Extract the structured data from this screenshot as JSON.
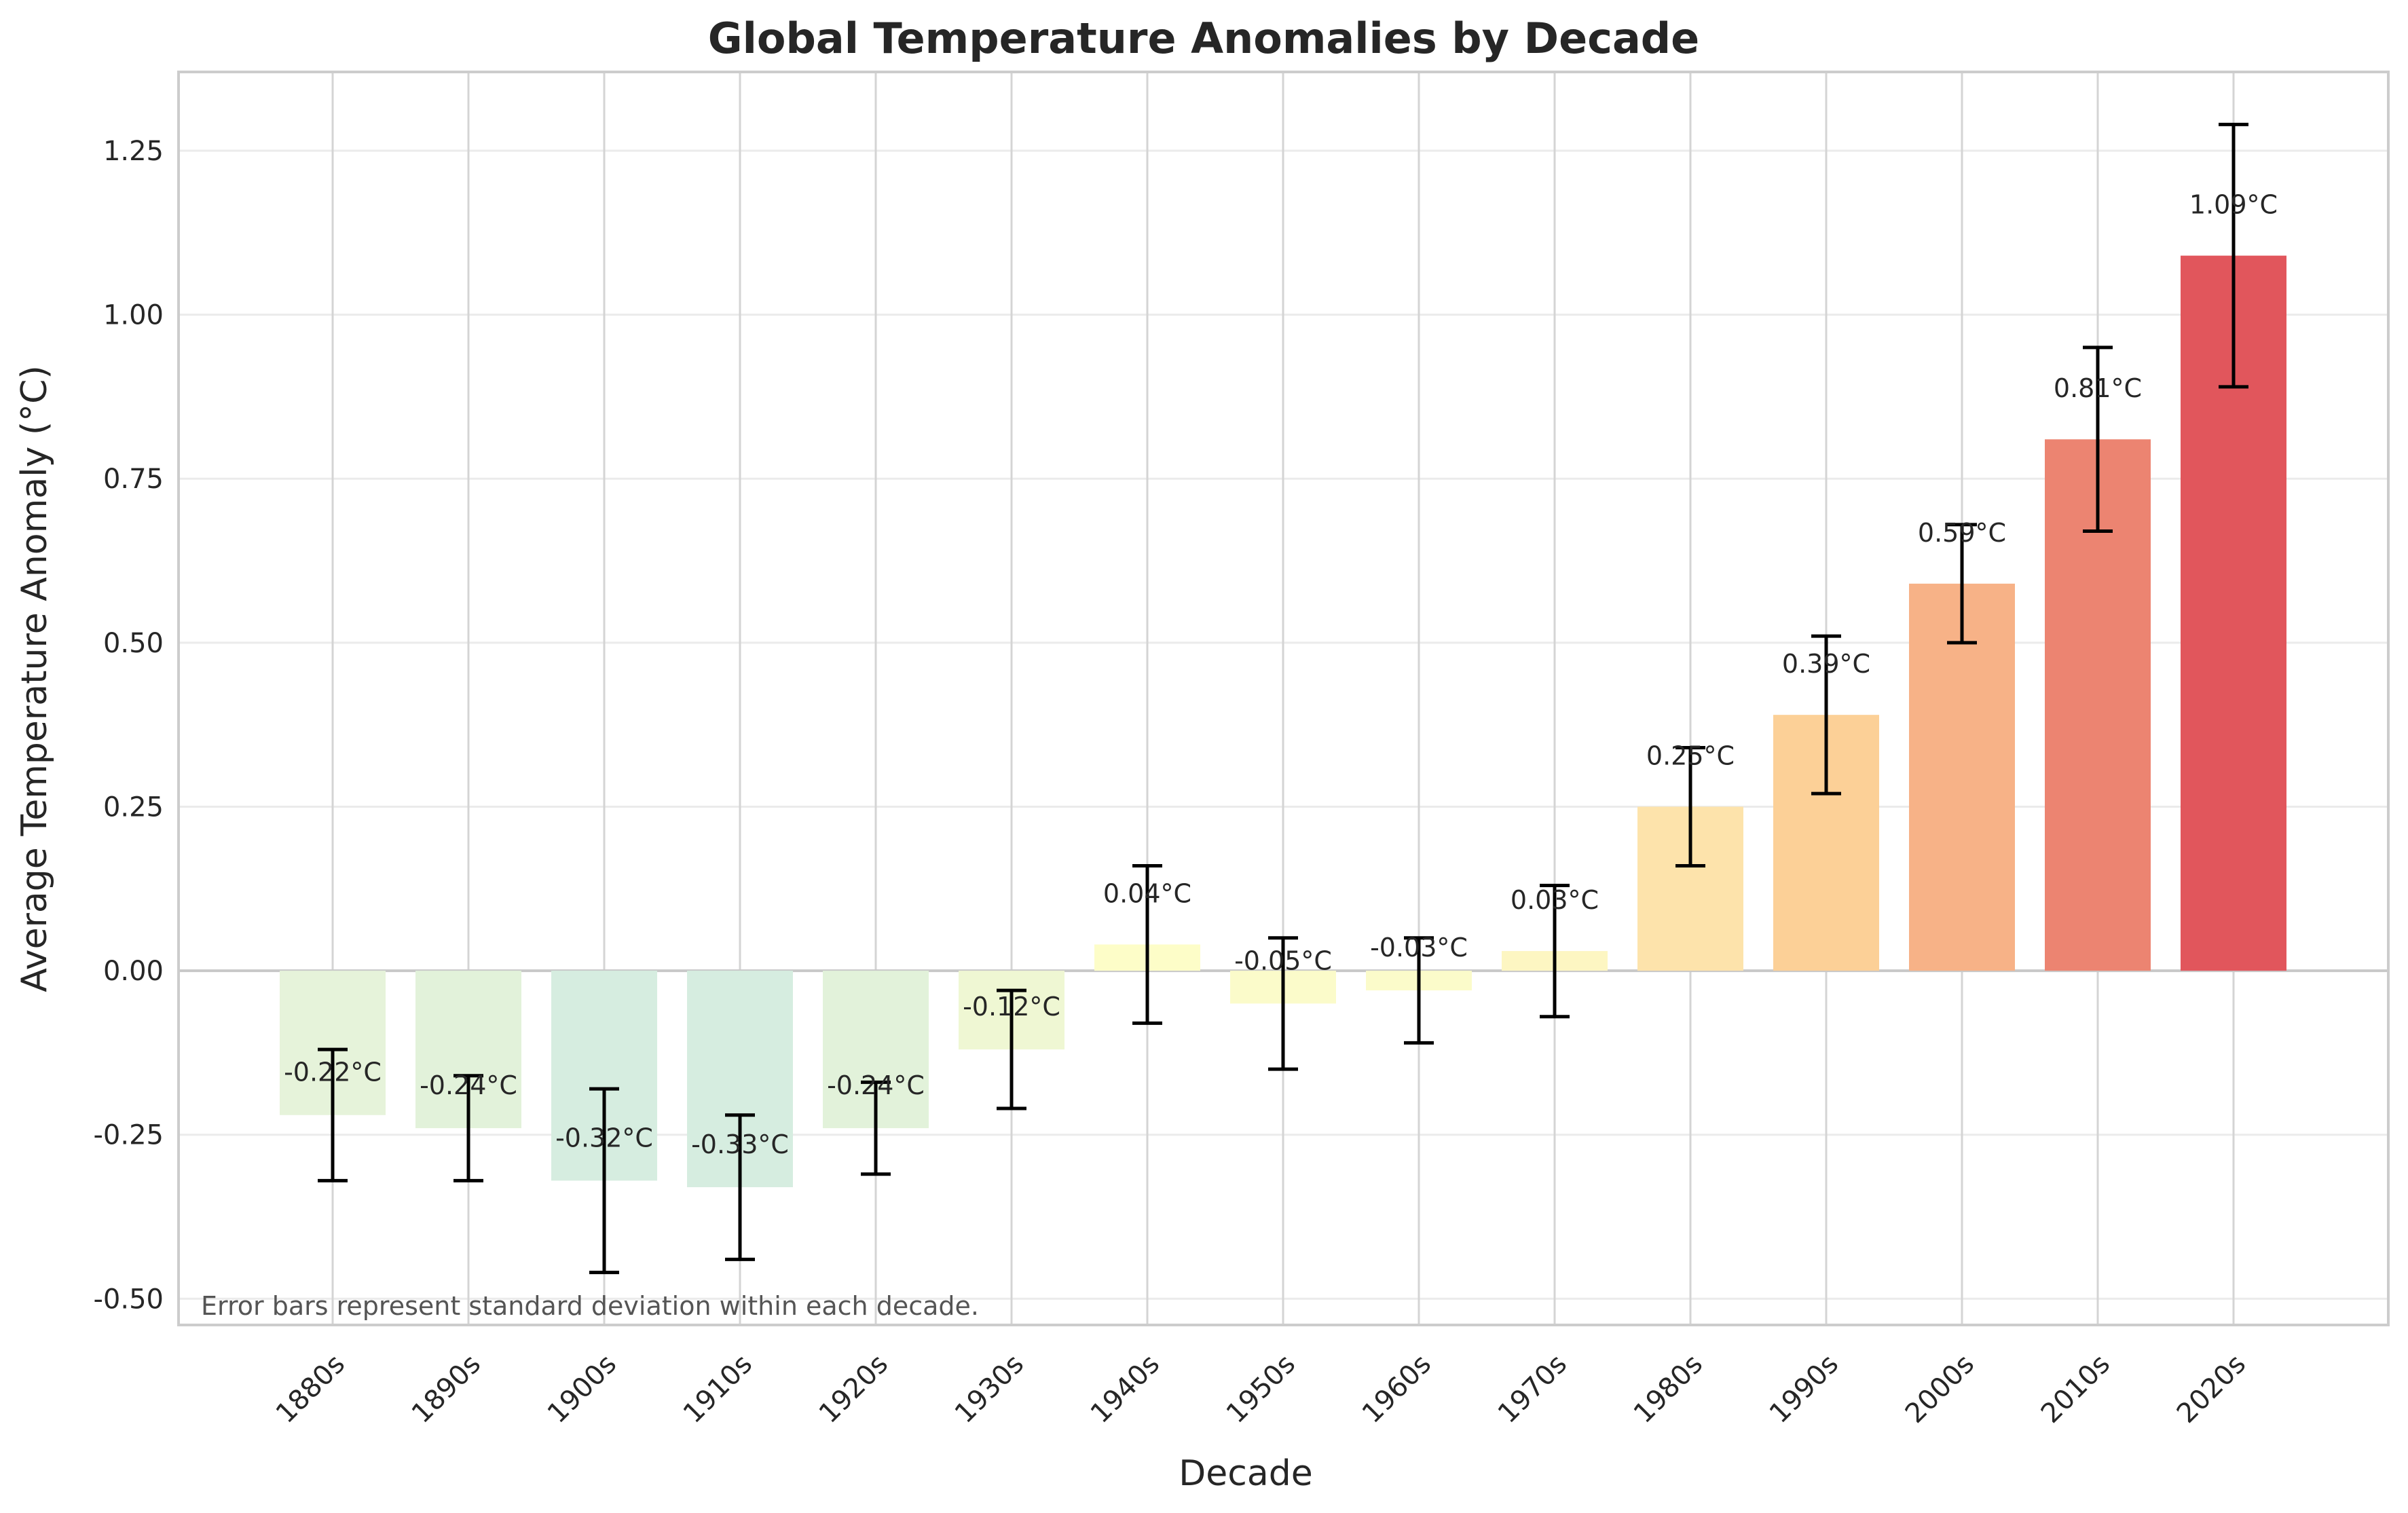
{
  "chart_data": {
    "type": "bar",
    "title": "Global Temperature Anomalies by Decade",
    "xlabel": "Decade",
    "ylabel": "Average Temperature Anomaly (°C)",
    "categories": [
      "1880s",
      "1890s",
      "1900s",
      "1910s",
      "1920s",
      "1930s",
      "1940s",
      "1950s",
      "1960s",
      "1970s",
      "1980s",
      "1990s",
      "2000s",
      "2010s",
      "2020s"
    ],
    "values": [
      -0.22,
      -0.24,
      -0.32,
      -0.33,
      -0.24,
      -0.12,
      0.04,
      -0.05,
      -0.03,
      0.03,
      0.25,
      0.39,
      0.59,
      0.81,
      1.09
    ],
    "value_labels": [
      "-0.22°C",
      "-0.24°C",
      "-0.32°C",
      "-0.33°C",
      "-0.24°C",
      "-0.12°C",
      "0.04°C",
      "-0.05°C",
      "-0.03°C",
      "0.03°C",
      "0.25°C",
      "0.39°C",
      "0.59°C",
      "0.81°C",
      "1.09°C"
    ],
    "error": [
      0.1,
      0.08,
      0.14,
      0.11,
      0.07,
      0.09,
      0.12,
      0.1,
      0.08,
      0.1,
      0.09,
      0.12,
      0.09,
      0.14,
      0.2
    ],
    "colors": [
      "#e6f3da",
      "#e2f2da",
      "#d6ede0",
      "#d6ede0",
      "#e2f2da",
      "#eff7d3",
      "#fdfdc8",
      "#fbfbca",
      "#fbfbca",
      "#fdf6c2",
      "#fde3ab",
      "#fcd097",
      "#f7b287",
      "#ec8471",
      "#e1565c"
    ],
    "ylim": [
      -0.54,
      1.37
    ],
    "yticks": [
      -0.5,
      -0.25,
      0.0,
      0.25,
      0.5,
      0.75,
      1.0,
      1.25
    ],
    "ytick_labels": [
      "-0.50",
      "-0.25",
      "0.00",
      "0.25",
      "0.50",
      "0.75",
      "1.00",
      "1.25"
    ],
    "grid": true,
    "annotation": "Error bars represent standard deviation within each decade."
  }
}
